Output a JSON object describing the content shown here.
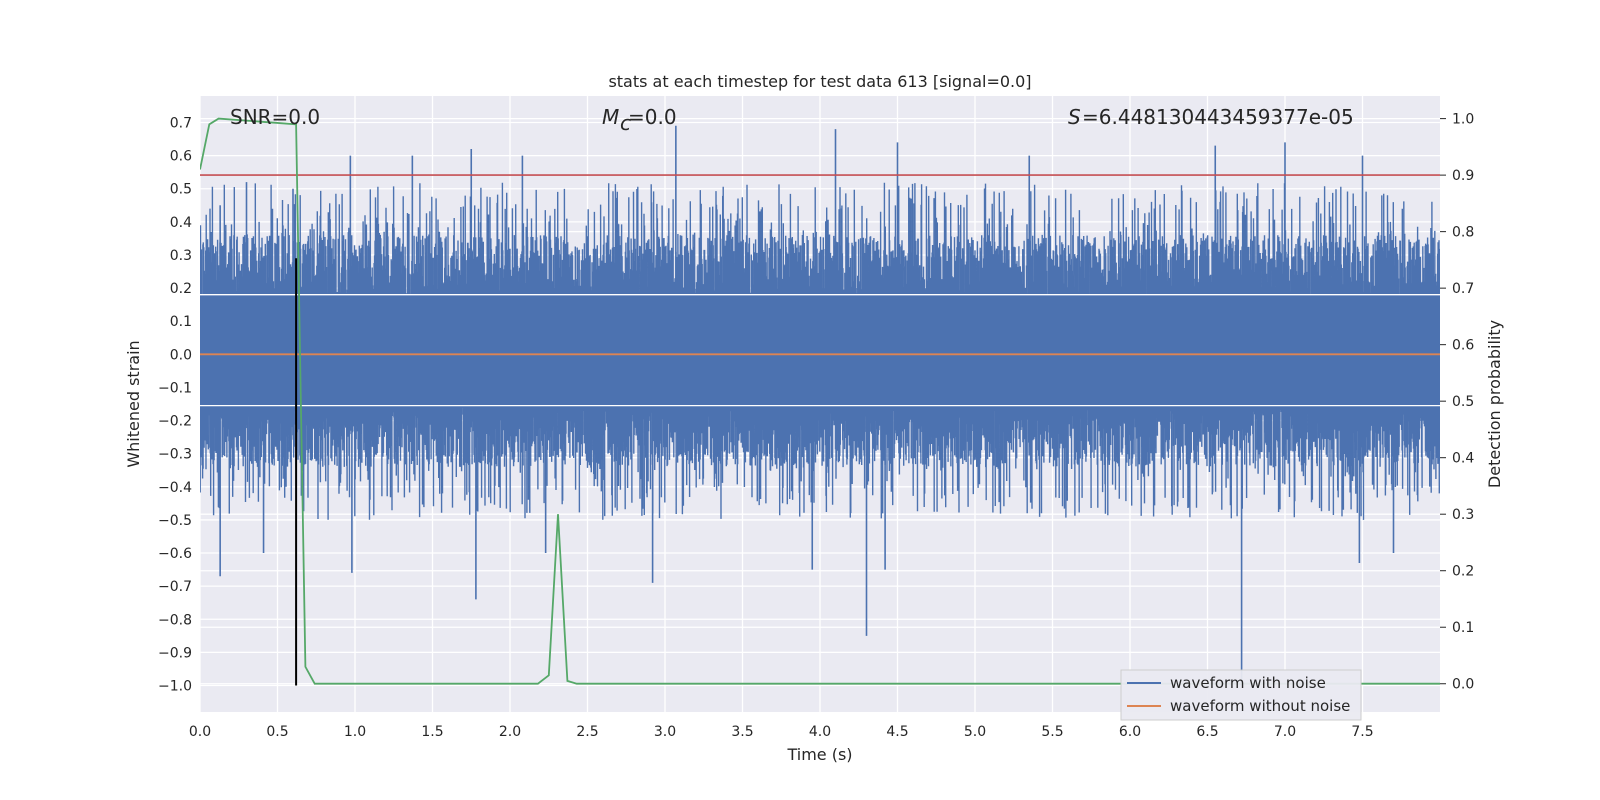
{
  "chart_data": {
    "type": "line",
    "title": "stats at each timestep for test data 613 [signal=0.0]",
    "xlabel": "Time (s)",
    "ylabel": "Whitened strain",
    "y2label": "Detection probability",
    "xlim": [
      0.0,
      8.0
    ],
    "ylim": [
      -1.08,
      0.78
    ],
    "y2lim": [
      -0.05,
      1.04
    ],
    "xticks": [
      "0.0",
      "0.5",
      "1.0",
      "1.5",
      "2.0",
      "2.5",
      "3.0",
      "3.5",
      "4.0",
      "4.5",
      "5.0",
      "5.5",
      "6.0",
      "6.5",
      "7.0",
      "7.5"
    ],
    "yticks": [
      "0.7",
      "0.6",
      "0.5",
      "0.4",
      "0.3",
      "0.2",
      "0.1",
      "0.0",
      "−0.1",
      "−0.2",
      "−0.3",
      "−0.4",
      "−0.5",
      "−0.6",
      "−0.7",
      "−0.8",
      "−0.9",
      "−1.0"
    ],
    "y2ticks": [
      "1.0",
      "0.9",
      "0.8",
      "0.7",
      "0.6",
      "0.5",
      "0.4",
      "0.3",
      "0.2",
      "0.1",
      "0.0"
    ],
    "grid": true,
    "legend_position": "lower-right",
    "annotations": {
      "snr": "SNR=0.0",
      "mc": "=0.0",
      "s": "=6.448130443459377e-05"
    },
    "series": [
      {
        "name": "waveform with noise",
        "color": "#4c72b0",
        "description_band": "dense noise, mostly within [-0.33, 0.35]",
        "peaks": [
          [
            0.13,
            0.45
          ],
          [
            0.3,
            0.52
          ],
          [
            0.6,
            0.5
          ],
          [
            0.97,
            0.6
          ],
          [
            1.37,
            0.6
          ],
          [
            1.75,
            0.62
          ],
          [
            2.08,
            0.6
          ],
          [
            3.07,
            0.69
          ],
          [
            4.1,
            0.68
          ],
          [
            4.5,
            0.64
          ],
          [
            5.35,
            0.6
          ],
          [
            6.55,
            0.63
          ],
          [
            7.0,
            0.64
          ],
          [
            7.5,
            0.6
          ]
        ],
        "troughs": [
          [
            0.13,
            -0.67
          ],
          [
            0.41,
            -0.6
          ],
          [
            0.98,
            -0.66
          ],
          [
            1.78,
            -0.74
          ],
          [
            2.23,
            -0.6
          ],
          [
            2.92,
            -0.69
          ],
          [
            3.95,
            -0.65
          ],
          [
            4.3,
            -0.85
          ],
          [
            4.42,
            -0.65
          ],
          [
            6.72,
            -1.0
          ],
          [
            7.48,
            -0.63
          ],
          [
            7.7,
            -0.6
          ]
        ]
      },
      {
        "name": "waveform without noise",
        "color": "#dd8452",
        "x": [
          0.0,
          8.0
        ],
        "y": [
          0.0,
          0.0
        ]
      },
      {
        "name": "",
        "color": "#55a868",
        "axis": "y2",
        "x": [
          0.0,
          0.06,
          0.12,
          0.62,
          0.68,
          0.74,
          2.18,
          2.25,
          2.31,
          2.37,
          2.43,
          8.0
        ],
        "y": [
          0.91,
          0.99,
          1.0,
          0.99,
          0.03,
          0.0,
          0.0,
          0.015,
          0.3,
          0.005,
          0.0,
          0.0
        ]
      },
      {
        "name": "",
        "color": "#c44e52",
        "axis": "y2",
        "x": [
          0.0,
          8.0
        ],
        "y": [
          0.9,
          0.9
        ]
      },
      {
        "name": "",
        "color": "#000000",
        "x": [
          0.62,
          0.62
        ],
        "y": [
          0.29,
          -1.0
        ]
      }
    ]
  }
}
